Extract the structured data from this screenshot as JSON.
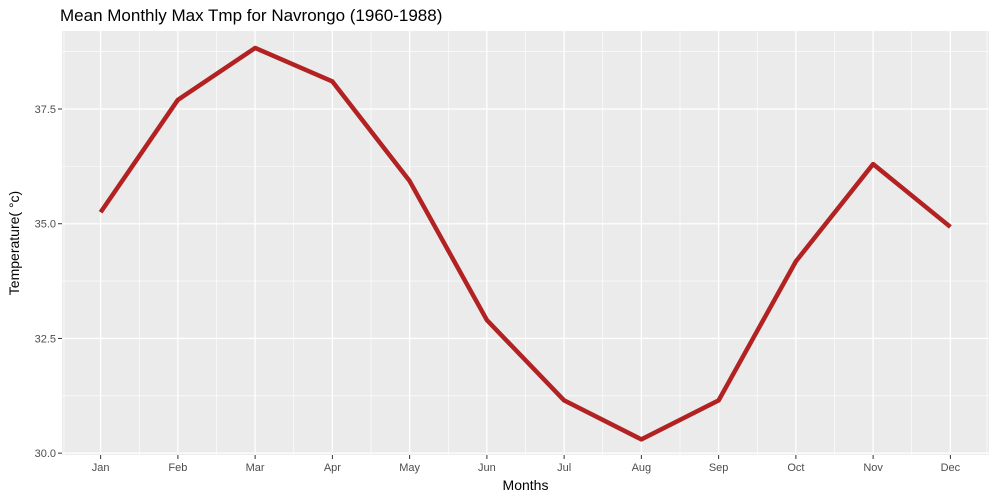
{
  "chart_data": {
    "type": "line",
    "title": "Mean Monthly Max Tmp for Navrongo (1960-1988)",
    "xlabel": "Months",
    "ylabel": "Temperature( °c)",
    "categories": [
      "Jan",
      "Feb",
      "Mar",
      "Apr",
      "May",
      "Jun",
      "Jul",
      "Aug",
      "Sep",
      "Oct",
      "Nov",
      "Dec"
    ],
    "series": [
      {
        "values": [
          35.25,
          37.7,
          38.83,
          38.1,
          35.93,
          32.9,
          31.15,
          30.3,
          31.15,
          34.18,
          36.3,
          34.93
        ]
      }
    ],
    "yticks": [
      "30.0",
      "32.5",
      "35.0",
      "37.5"
    ],
    "ylim": [
      29.96,
      39.2
    ],
    "grid": true,
    "legend": "none",
    "line_color": "#b22222",
    "panel_color": "#ebebeb",
    "grid_color": "#ffffff"
  }
}
